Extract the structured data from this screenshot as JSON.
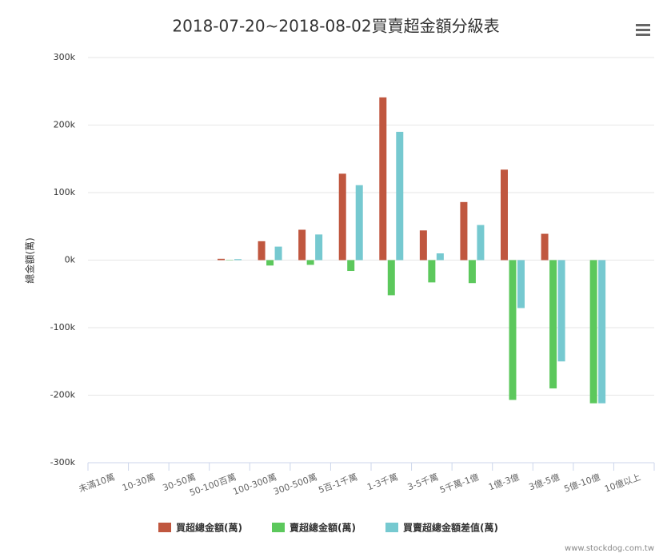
{
  "chart_data": {
    "type": "bar",
    "title": "2018-07-20~2018-08-02買賣超金額分級表",
    "y_label": "總金額(萬)",
    "categories": [
      "未滿10萬",
      "10-30萬",
      "30-50萬",
      "50-100百萬",
      "100-300萬",
      "300-500萬",
      "5百-1千萬",
      "1-3千萬",
      "3-5千萬",
      "5千萬-1億",
      "1億-3億",
      "3億-5億",
      "5億-10億",
      "10億以上"
    ],
    "series": [
      {
        "name": "買超總金額(萬)",
        "color": "#c0573f",
        "values": [
          0,
          0,
          0,
          2000,
          28000,
          45000,
          128000,
          241000,
          44000,
          86000,
          134000,
          39000,
          0,
          0
        ]
      },
      {
        "name": "賣超總金額(萬)",
        "color": "#5cc85c",
        "values": [
          0,
          0,
          0,
          -500,
          -8000,
          -7000,
          -16000,
          -52000,
          -33000,
          -34000,
          -207000,
          -190000,
          -212000,
          0
        ]
      },
      {
        "name": "買賣超總金額差值(萬)",
        "color": "#76c9d0",
        "values": [
          0,
          0,
          0,
          1500,
          20000,
          38000,
          111000,
          190000,
          10000,
          52000,
          -71000,
          -150000,
          -212000,
          0
        ]
      }
    ],
    "ylim": [
      -300000,
      300000
    ],
    "yticks": [
      {
        "value": -300000,
        "label": "-300k"
      },
      {
        "value": -200000,
        "label": "-200k"
      },
      {
        "value": -100000,
        "label": "-100k"
      },
      {
        "value": 0,
        "label": "0k"
      },
      {
        "value": 100000,
        "label": "100k"
      },
      {
        "value": 200000,
        "label": "200k"
      },
      {
        "value": 300000,
        "label": "300k"
      }
    ],
    "grid": true,
    "credit": "www.stockdog.com.tw"
  }
}
